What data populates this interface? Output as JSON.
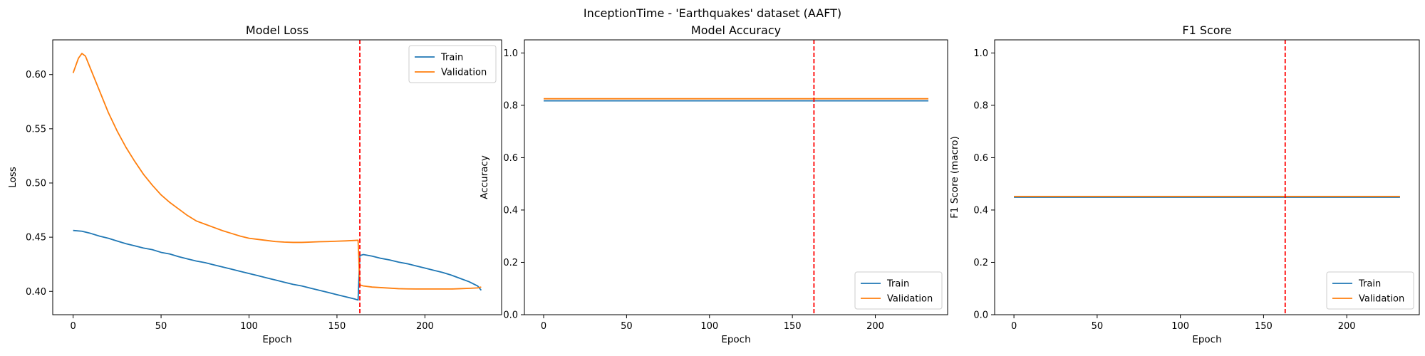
{
  "figure_title": "InceptionTime - 'Earthquakes' dataset (AAFT)",
  "chart_data": [
    {
      "type": "line",
      "title": "Model Loss",
      "xlabel": "Epoch",
      "ylabel": "Loss",
      "xlim": [
        -11.6,
        243.6
      ],
      "ylim": [
        0.3785,
        0.632
      ],
      "xticks": [
        0,
        50,
        100,
        150,
        200
      ],
      "yticks": [
        0.4,
        0.45,
        0.5,
        0.55,
        0.6
      ],
      "ytick_format": 2,
      "grid": false,
      "legend_position": "top-right",
      "vline": {
        "x": 163,
        "color": "#ff0000",
        "style": "dashed"
      },
      "series": [
        {
          "name": "Train",
          "color": "#1f77b4",
          "points": [
            [
              0,
              0.4562
            ],
            [
              5,
              0.4555
            ],
            [
              10,
              0.4535
            ],
            [
              15,
              0.451
            ],
            [
              20,
              0.449
            ],
            [
              25,
              0.4465
            ],
            [
              30,
              0.444
            ],
            [
              35,
              0.442
            ],
            [
              40,
              0.44
            ],
            [
              45,
              0.4385
            ],
            [
              50,
              0.436
            ],
            [
              55,
              0.4345
            ],
            [
              60,
              0.432
            ],
            [
              65,
              0.43
            ],
            [
              70,
              0.428
            ],
            [
              75,
              0.4265
            ],
            [
              80,
              0.4245
            ],
            [
              85,
              0.4225
            ],
            [
              90,
              0.4205
            ],
            [
              95,
              0.4185
            ],
            [
              100,
              0.4165
            ],
            [
              105,
              0.4145
            ],
            [
              110,
              0.4125
            ],
            [
              115,
              0.4105
            ],
            [
              120,
              0.4085
            ],
            [
              125,
              0.4065
            ],
            [
              130,
              0.405
            ],
            [
              135,
              0.403
            ],
            [
              140,
              0.401
            ],
            [
              145,
              0.399
            ],
            [
              150,
              0.397
            ],
            [
              155,
              0.395
            ],
            [
              160,
              0.393
            ],
            [
              162,
              0.392
            ],
            [
              163,
              0.433
            ],
            [
              165,
              0.434
            ],
            [
              170,
              0.4325
            ],
            [
              175,
              0.4305
            ],
            [
              180,
              0.429
            ],
            [
              185,
              0.427
            ],
            [
              190,
              0.4255
            ],
            [
              195,
              0.4235
            ],
            [
              200,
              0.4215
            ],
            [
              205,
              0.4195
            ],
            [
              210,
              0.4175
            ],
            [
              215,
              0.415
            ],
            [
              220,
              0.412
            ],
            [
              225,
              0.409
            ],
            [
              230,
              0.405
            ],
            [
              232,
              0.401
            ]
          ]
        },
        {
          "name": "Validation",
          "color": "#ff7f0e",
          "points": [
            [
              0,
              0.6015
            ],
            [
              3,
              0.615
            ],
            [
              5,
              0.6195
            ],
            [
              7,
              0.617
            ],
            [
              10,
              0.605
            ],
            [
              15,
              0.585
            ],
            [
              20,
              0.565
            ],
            [
              25,
              0.548
            ],
            [
              30,
              0.533
            ],
            [
              35,
              0.52
            ],
            [
              40,
              0.508
            ],
            [
              45,
              0.498
            ],
            [
              50,
              0.489
            ],
            [
              55,
              0.482
            ],
            [
              60,
              0.476
            ],
            [
              65,
              0.47
            ],
            [
              70,
              0.465
            ],
            [
              75,
              0.462
            ],
            [
              80,
              0.459
            ],
            [
              85,
              0.456
            ],
            [
              90,
              0.4535
            ],
            [
              95,
              0.451
            ],
            [
              100,
              0.449
            ],
            [
              105,
              0.448
            ],
            [
              110,
              0.447
            ],
            [
              115,
              0.446
            ],
            [
              120,
              0.4455
            ],
            [
              125,
              0.4452
            ],
            [
              130,
              0.4452
            ],
            [
              135,
              0.4455
            ],
            [
              140,
              0.4458
            ],
            [
              145,
              0.446
            ],
            [
              150,
              0.4463
            ],
            [
              155,
              0.4466
            ],
            [
              160,
              0.447
            ],
            [
              162,
              0.4472
            ],
            [
              163,
              0.406
            ],
            [
              165,
              0.405
            ],
            [
              170,
              0.404
            ],
            [
              175,
              0.4035
            ],
            [
              180,
              0.403
            ],
            [
              185,
              0.4025
            ],
            [
              190,
              0.4023
            ],
            [
              195,
              0.4022
            ],
            [
              200,
              0.4022
            ],
            [
              205,
              0.4022
            ],
            [
              210,
              0.4022
            ],
            [
              215,
              0.4022
            ],
            [
              220,
              0.4025
            ],
            [
              225,
              0.4028
            ],
            [
              230,
              0.4032
            ],
            [
              232,
              0.404
            ]
          ]
        }
      ]
    },
    {
      "type": "line",
      "title": "Model Accuracy",
      "xlabel": "Epoch",
      "ylabel": "Accuracy",
      "xlim": [
        -11.6,
        243.6
      ],
      "ylim": [
        0.0,
        1.05
      ],
      "xticks": [
        0,
        50,
        100,
        150,
        200
      ],
      "yticks": [
        0.0,
        0.2,
        0.4,
        0.6,
        0.8,
        1.0
      ],
      "ytick_format": 1,
      "grid": false,
      "legend_position": "bottom-right",
      "vline": {
        "x": 163,
        "color": "#ff0000",
        "style": "dashed"
      },
      "series": [
        {
          "name": "Train",
          "color": "#1f77b4",
          "points": [
            [
              0,
              0.817
            ],
            [
              232,
              0.817
            ]
          ]
        },
        {
          "name": "Validation",
          "color": "#ff7f0e",
          "points": [
            [
              0,
              0.825
            ],
            [
              232,
              0.825
            ]
          ]
        }
      ]
    },
    {
      "type": "line",
      "title": "F1 Score",
      "xlabel": "Epoch",
      "ylabel": "F1 Score (macro)",
      "xlim": [
        -11.6,
        243.6
      ],
      "ylim": [
        0.0,
        1.05
      ],
      "xticks": [
        0,
        50,
        100,
        150,
        200
      ],
      "yticks": [
        0.0,
        0.2,
        0.4,
        0.6,
        0.8,
        1.0
      ],
      "ytick_format": 1,
      "grid": false,
      "legend_position": "bottom-right",
      "vline": {
        "x": 163,
        "color": "#ff0000",
        "style": "dashed"
      },
      "series": [
        {
          "name": "Train",
          "color": "#1f77b4",
          "points": [
            [
              0,
              0.449
            ],
            [
              232,
              0.449
            ]
          ]
        },
        {
          "name": "Validation",
          "color": "#ff7f0e",
          "points": [
            [
              0,
              0.452
            ],
            [
              232,
              0.452
            ]
          ]
        }
      ]
    }
  ]
}
